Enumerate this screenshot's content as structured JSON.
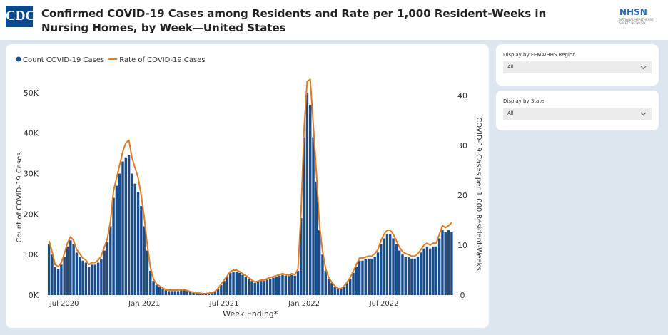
{
  "header": {
    "logo": "CDC",
    "title": "Confirmed COVID-19 Cases among Residents and Rate per 1,000 Resident-Weeks in Nursing Homes, by Week—United States",
    "partner_logo": "NHSN",
    "partner_tagline": "NATIONAL HEALTHCARE SAFETY NETWORK"
  },
  "filters": [
    {
      "label": "Display by FEMA/HHS Region",
      "value": "All"
    },
    {
      "label": "Display by State",
      "value": "All"
    }
  ],
  "chart_data": {
    "type": "bar",
    "x_label": "Week Ending*",
    "y_label": "Count of COVID-19 Cases",
    "y2_label": "COVID-19 Cases per 1,000 Resident-Weeks",
    "legend": "top-left",
    "categories": [
      null,
      null,
      null,
      null,
      null,
      "Jul 2020",
      null,
      null,
      null,
      null,
      null,
      null,
      null,
      null,
      null,
      null,
      null,
      null,
      null,
      null,
      null,
      null,
      null,
      null,
      null,
      null,
      null,
      null,
      null,
      null,
      null,
      "Jan 2021",
      null,
      null,
      null,
      null,
      null,
      null,
      null,
      null,
      null,
      null,
      null,
      null,
      null,
      null,
      null,
      null,
      null,
      null,
      null,
      null,
      null,
      null,
      null,
      null,
      null,
      "Jul 2021",
      null,
      null,
      null,
      null,
      null,
      null,
      null,
      null,
      null,
      null,
      null,
      null,
      null,
      null,
      null,
      null,
      null,
      null,
      null,
      null,
      null,
      null,
      null,
      null,
      null,
      "Jan 2022",
      null,
      null,
      null,
      null,
      null,
      null,
      null,
      null,
      null,
      null,
      null,
      null,
      null,
      null,
      null,
      null,
      null,
      null,
      null,
      null,
      null,
      null,
      null,
      null,
      null,
      "Jul 2022",
      null,
      null,
      null,
      null,
      null,
      null,
      null,
      null,
      null,
      null,
      null,
      null,
      null,
      null,
      null,
      null,
      null,
      null,
      null,
      null,
      null,
      null
    ],
    "ylim": [
      0,
      53500
    ],
    "yticks": [
      {
        "value": 0,
        "label": "0K"
      },
      {
        "value": 10000,
        "label": "10K"
      },
      {
        "value": 20000,
        "label": "20K"
      },
      {
        "value": 30000,
        "label": "30K"
      },
      {
        "value": 40000,
        "label": "40K"
      },
      {
        "value": 50000,
        "label": "50K"
      }
    ],
    "y2lim": [
      0,
      43.4
    ],
    "y2ticks": [
      0,
      10,
      20,
      30,
      40
    ],
    "series": [
      {
        "name": "Count COVID-19 Cases",
        "type": "bar",
        "color": "#1a4d89",
        "values": [
          12500,
          10000,
          7000,
          6500,
          7500,
          9500,
          12000,
          13500,
          12500,
          10500,
          9500,
          8500,
          8000,
          7000,
          7500,
          7500,
          8000,
          9000,
          11000,
          13000,
          17000,
          24000,
          27000,
          30000,
          33000,
          34000,
          34500,
          30000,
          27500,
          25500,
          22000,
          17000,
          11000,
          6000,
          3500,
          2500,
          2000,
          1500,
          1200,
          1000,
          1000,
          1000,
          1000,
          1200,
          1200,
          1000,
          800,
          600,
          500,
          400,
          300,
          300,
          400,
          500,
          800,
          1500,
          2500,
          3500,
          4500,
          5500,
          5800,
          5800,
          5500,
          5000,
          4500,
          4000,
          3500,
          3000,
          3200,
          3500,
          3500,
          3800,
          4000,
          4300,
          4500,
          4800,
          5000,
          4800,
          4700,
          5000,
          4800,
          6000,
          19000,
          39000,
          50000,
          47000,
          39000,
          28000,
          16000,
          10000,
          6000,
          4000,
          3000,
          2000,
          1500,
          1500,
          2000,
          3000,
          4000,
          5500,
          7000,
          8500,
          8500,
          8800,
          9000,
          9000,
          9500,
          10500,
          12500,
          14000,
          15000,
          15000,
          14000,
          12500,
          11000,
          10000,
          9500,
          9300,
          9000,
          9000,
          9500,
          10500,
          11500,
          12000,
          11500,
          12000,
          12000,
          14000,
          16000,
          15500,
          16000,
          15500
        ]
      },
      {
        "name": "Rate of COVID-19 Cases",
        "type": "line",
        "axis": "y2",
        "color": "#e07b24",
        "values": [
          10.9,
          8.7,
          6.1,
          5.7,
          6.5,
          8.3,
          10.4,
          11.7,
          10.9,
          9.1,
          8.3,
          7.4,
          7.0,
          6.1,
          6.5,
          6.5,
          7.0,
          7.8,
          9.6,
          11.3,
          14.8,
          20.9,
          23.5,
          26.1,
          28.7,
          30.5,
          31.0,
          27.5,
          25.5,
          23.5,
          20.0,
          15.5,
          10.0,
          5.5,
          3.2,
          2.2,
          1.8,
          1.4,
          1.1,
          1.0,
          1.0,
          1.0,
          1.0,
          1.1,
          1.1,
          0.9,
          0.7,
          0.6,
          0.5,
          0.4,
          0.3,
          0.3,
          0.4,
          0.5,
          0.7,
          1.3,
          2.2,
          3.0,
          3.9,
          4.7,
          5.0,
          5.0,
          4.7,
          4.3,
          3.9,
          3.5,
          3.0,
          2.6,
          2.8,
          3.0,
          3.0,
          3.3,
          3.5,
          3.7,
          3.9,
          4.1,
          4.3,
          4.1,
          4.0,
          4.3,
          4.1,
          5.2,
          16.5,
          33.5,
          42.8,
          43.2,
          34.0,
          24.5,
          14.0,
          8.8,
          5.3,
          3.5,
          2.6,
          1.8,
          1.3,
          1.3,
          1.8,
          2.6,
          3.5,
          4.8,
          6.1,
          7.4,
          7.4,
          7.6,
          7.8,
          7.8,
          8.3,
          9.1,
          10.9,
          12.2,
          13.0,
          13.0,
          12.2,
          10.9,
          9.6,
          8.7,
          8.3,
          8.1,
          7.8,
          7.8,
          8.3,
          9.1,
          10.0,
          10.4,
          10.0,
          10.4,
          10.4,
          12.2,
          13.9,
          13.5,
          13.9,
          14.5
        ]
      }
    ]
  }
}
